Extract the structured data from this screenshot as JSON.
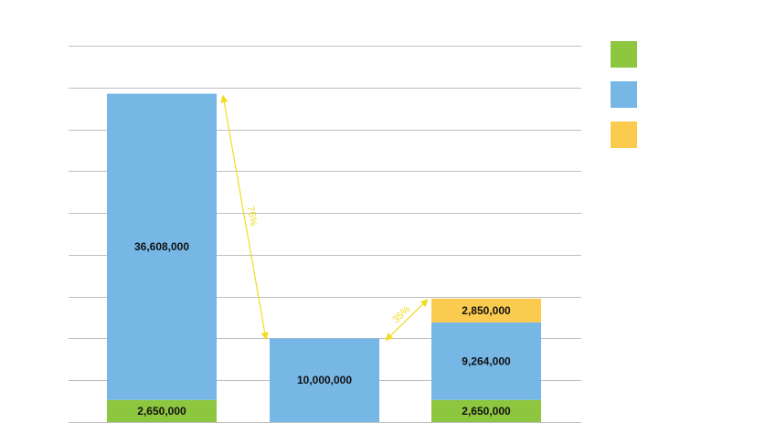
{
  "chart_data": {
    "type": "bar",
    "stacked": true,
    "title": "",
    "xlabel": "",
    "ylabel": "",
    "ylim": [
      0,
      45000000
    ],
    "gridline_step": 5000000,
    "legend_position": "top-right",
    "categories": [
      "",
      "",
      ""
    ],
    "series": [
      {
        "name": "",
        "color": "#8DC63F",
        "values": [
          2650000,
          0,
          2650000
        ],
        "labels": [
          "2,650,000",
          "",
          "2,650,000"
        ]
      },
      {
        "name": "",
        "color": "#76B7E6",
        "values": [
          36608000,
          10000000,
          9264000
        ],
        "labels": [
          "36,608,000",
          "10,000,000",
          "9,264,000"
        ]
      },
      {
        "name": "",
        "color": "#FBCB4F",
        "values": [
          0,
          0,
          2850000
        ],
        "labels": [
          "",
          "",
          "2,850,000"
        ]
      }
    ],
    "annotations": [
      {
        "text": "75%",
        "from_bar": 0,
        "to_bar": 1,
        "color": "#F2DC1E"
      },
      {
        "text": "35%",
        "from_bar": 1,
        "to_bar": 2,
        "color": "#F2DC1E"
      }
    ]
  }
}
